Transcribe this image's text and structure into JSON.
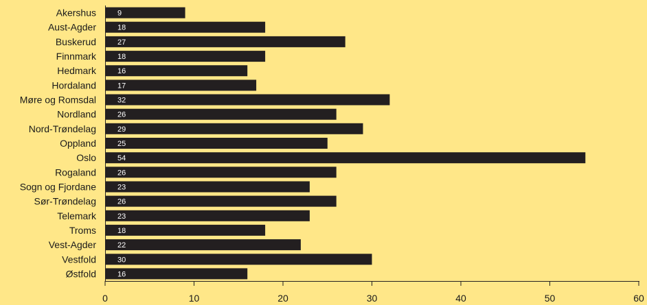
{
  "chart_data": {
    "type": "bar",
    "orientation": "horizontal",
    "title": "",
    "xlabel": "",
    "ylabel": "",
    "categories": [
      "Akershus",
      "Aust-Agder",
      "Buskerud",
      "Finnmark",
      "Hedmark",
      "Hordaland",
      "Møre og Romsdal",
      "Nordland",
      "Nord-Trøndelag",
      "Oppland",
      "Oslo",
      "Rogaland",
      "Sogn og Fjordane",
      "Sør-Trøndelag",
      "Telemark",
      "Troms",
      "Vest-Agder",
      "Vestfold",
      "Østfold"
    ],
    "values": [
      9,
      18,
      27,
      18,
      16,
      17,
      32,
      26,
      29,
      25,
      54,
      26,
      23,
      26,
      23,
      18,
      22,
      30,
      16
    ],
    "xlim": [
      0,
      60
    ],
    "xticks": [
      0,
      10,
      20,
      30,
      40,
      50,
      60
    ],
    "grid": false,
    "colors": {
      "background": "#ffe788",
      "bar": "#231f20",
      "bar_label": "#ffffff"
    }
  }
}
